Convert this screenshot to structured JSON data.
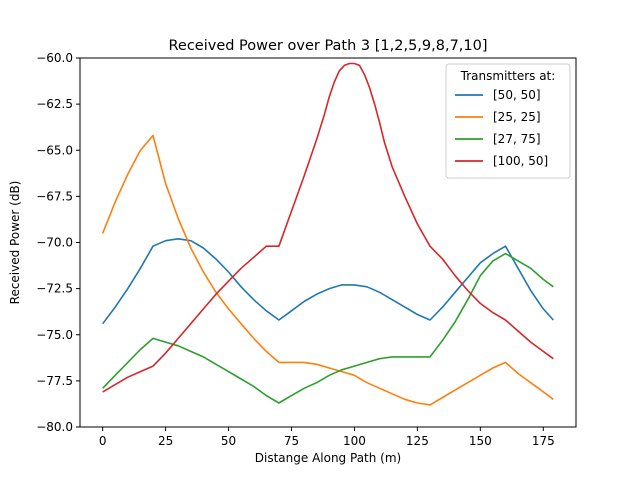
{
  "chart_data": {
    "type": "line",
    "title": "Received Power over Path 3 [1,2,5,9,8,7,10]",
    "xlabel": "Distange Along Path (m)",
    "ylabel": "Received Power (dB)",
    "xlim": [
      -9,
      188
    ],
    "ylim": [
      -80,
      -60
    ],
    "xticks": [
      0,
      25,
      50,
      75,
      100,
      125,
      150,
      175
    ],
    "yticks": [
      -80.0,
      -77.5,
      -75.0,
      -72.5,
      -70.0,
      -67.5,
      -65.0,
      -62.5,
      -60.0
    ],
    "grid": false,
    "legend": {
      "title": "Transmitters at:",
      "placement": "top-right"
    },
    "series": [
      {
        "name": "[50, 50]",
        "color": "#1f77b4",
        "x": [
          0,
          5,
          10,
          15,
          20,
          25,
          30,
          35,
          40,
          45,
          50,
          55,
          60,
          65,
          70,
          75,
          80,
          85,
          90,
          95,
          100,
          105,
          110,
          115,
          120,
          125,
          130,
          135,
          140,
          145,
          150,
          155,
          160,
          165,
          170,
          175,
          179
        ],
        "y": [
          -74.4,
          -73.5,
          -72.5,
          -71.4,
          -70.2,
          -69.9,
          -69.8,
          -69.9,
          -70.3,
          -70.9,
          -71.6,
          -72.4,
          -73.1,
          -73.7,
          -74.2,
          -73.7,
          -73.2,
          -72.8,
          -72.5,
          -72.3,
          -72.3,
          -72.4,
          -72.7,
          -73.1,
          -73.5,
          -73.9,
          -74.2,
          -73.5,
          -72.7,
          -71.9,
          -71.1,
          -70.6,
          -70.2,
          -71.4,
          -72.6,
          -73.6,
          -74.2
        ]
      },
      {
        "name": "[25, 25]",
        "color": "#ff7f0e",
        "x": [
          0,
          5,
          10,
          15,
          20,
          25,
          30,
          35,
          40,
          45,
          50,
          55,
          60,
          65,
          70,
          75,
          80,
          85,
          90,
          95,
          100,
          105,
          110,
          115,
          120,
          125,
          130,
          135,
          140,
          145,
          150,
          155,
          160,
          165,
          170,
          175,
          179
        ],
        "y": [
          -69.5,
          -67.8,
          -66.3,
          -65.0,
          -64.2,
          -66.8,
          -68.7,
          -70.3,
          -71.6,
          -72.7,
          -73.6,
          -74.4,
          -75.2,
          -75.9,
          -76.5,
          -76.5,
          -76.5,
          -76.6,
          -76.8,
          -77.0,
          -77.2,
          -77.6,
          -77.9,
          -78.2,
          -78.5,
          -78.7,
          -78.8,
          -78.4,
          -78.0,
          -77.6,
          -77.2,
          -76.8,
          -76.5,
          -77.1,
          -77.6,
          -78.1,
          -78.5
        ]
      },
      {
        "name": "[27, 75]",
        "color": "#2ca02c",
        "x": [
          0,
          5,
          10,
          15,
          20,
          25,
          30,
          35,
          40,
          45,
          50,
          55,
          60,
          65,
          70,
          75,
          80,
          85,
          90,
          95,
          100,
          105,
          110,
          115,
          120,
          125,
          130,
          135,
          140,
          145,
          150,
          155,
          160,
          165,
          170,
          175,
          179
        ],
        "y": [
          -77.9,
          -77.2,
          -76.5,
          -75.8,
          -75.2,
          -75.4,
          -75.6,
          -75.9,
          -76.2,
          -76.6,
          -77.0,
          -77.4,
          -77.8,
          -78.3,
          -78.7,
          -78.3,
          -77.9,
          -77.6,
          -77.2,
          -76.9,
          -76.7,
          -76.5,
          -76.3,
          -76.2,
          -76.2,
          -76.2,
          -76.2,
          -75.3,
          -74.3,
          -73.1,
          -71.8,
          -71.0,
          -70.6,
          -71.0,
          -71.4,
          -72.0,
          -72.4
        ]
      },
      {
        "name": "[100, 50]",
        "color": "#d62728",
        "x": [
          0,
          5,
          10,
          15,
          20,
          25,
          30,
          35,
          40,
          45,
          50,
          55,
          60,
          65,
          70,
          75,
          80,
          85,
          88,
          90,
          92,
          94,
          96,
          98,
          100,
          102,
          104,
          106,
          108,
          110,
          112,
          115,
          120,
          125,
          130,
          135,
          140,
          145,
          150,
          155,
          160,
          165,
          170,
          175,
          179
        ],
        "y": [
          -78.1,
          -77.7,
          -77.3,
          -77.0,
          -76.7,
          -76.0,
          -75.2,
          -74.4,
          -73.6,
          -72.8,
          -72.1,
          -71.4,
          -70.8,
          -70.2,
          -70.2,
          -68.3,
          -66.4,
          -64.4,
          -63.1,
          -62.1,
          -61.3,
          -60.7,
          -60.4,
          -60.3,
          -60.3,
          -60.4,
          -60.9,
          -61.6,
          -62.5,
          -63.5,
          -64.6,
          -65.9,
          -67.5,
          -69.0,
          -70.2,
          -70.9,
          -71.8,
          -72.6,
          -73.3,
          -73.8,
          -74.2,
          -74.8,
          -75.4,
          -75.9,
          -76.3
        ]
      }
    ]
  }
}
